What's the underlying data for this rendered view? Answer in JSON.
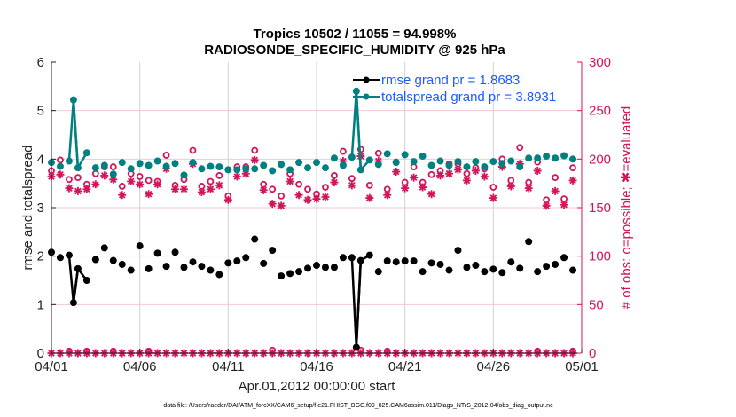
{
  "chart_data": {
    "type": "line",
    "title": "Tropics 10502 / 11055 = 94.998%",
    "subtitle": "RADIOSONDE_SPECIFIC_HUMIDITY @ 925 hPa",
    "xlabel": "Apr.01,2012 00:00:00 start",
    "ylabel": "rmse and totalspread",
    "ylabel_right": "# of obs: o=possible; ✱=evaluated",
    "footer": "data file: /Users/raeder/DAI/ATM_forcXX/CAM6_setup/f.e21.FHIST_BGC.f09_025.CAM6assim.011/Diags_NTrS_2012-04/obs_diag_output.nc",
    "xlim_days": [
      0,
      30
    ],
    "ylim": [
      0,
      6
    ],
    "ylim_right": [
      0,
      300
    ],
    "x_ticks": [
      {
        "day": 0,
        "label": "04/01"
      },
      {
        "day": 5,
        "label": "04/06"
      },
      {
        "day": 10,
        "label": "04/11"
      },
      {
        "day": 15,
        "label": "04/16"
      },
      {
        "day": 20,
        "label": "04/21"
      },
      {
        "day": 25,
        "label": "04/26"
      },
      {
        "day": 30,
        "label": "05/01"
      }
    ],
    "y_ticks": [
      "0",
      "1",
      "2",
      "3",
      "4",
      "5",
      "6"
    ],
    "y_ticks_right": [
      "0",
      "50",
      "100",
      "150",
      "200",
      "250",
      "300"
    ],
    "grid": true,
    "legend_position": "top-right",
    "colors": {
      "rmse": "#000000",
      "totalspread": "#008080",
      "obs": "#d4145a",
      "legend_text": "#1a5cff",
      "vgrid": "#d0d0d0",
      "hgrid": "#f5c6d8"
    },
    "series": [
      {
        "name": "rmse grand pr = 1.8683",
        "axis": "left",
        "connected_spikes": true,
        "x": [
          0,
          0.5,
          1,
          1.25,
          1.5,
          2,
          2.5,
          3,
          3.5,
          4,
          4.5,
          5,
          5.5,
          6,
          6.5,
          7,
          7.5,
          8,
          8.5,
          9,
          9.5,
          10,
          10.5,
          11,
          11.5,
          12,
          12.5,
          13,
          13.5,
          14,
          14.5,
          15,
          15.5,
          16,
          16.5,
          17,
          17.25,
          17.5,
          18,
          18.5,
          19,
          19.5,
          20,
          20.5,
          21,
          21.5,
          22,
          22.5,
          23,
          23.5,
          24,
          24.5,
          25,
          25.5,
          26,
          26.5,
          27,
          27.5,
          28,
          28.5,
          29,
          29.5
        ],
        "y": [
          2.08,
          1.97,
          2.02,
          1.04,
          1.74,
          1.5,
          1.93,
          2.17,
          1.91,
          1.83,
          1.71,
          2.21,
          1.74,
          2.06,
          1.79,
          2.08,
          1.77,
          1.88,
          1.79,
          1.71,
          1.62,
          1.86,
          1.9,
          1.97,
          2.35,
          1.85,
          2.12,
          1.59,
          1.64,
          1.68,
          1.75,
          1.81,
          1.77,
          1.77,
          1.97,
          1.97,
          0.12,
          1.91,
          2.02,
          1.68,
          1.9,
          1.88,
          1.9,
          1.9,
          1.68,
          1.86,
          1.83,
          1.71,
          2.12,
          1.77,
          1.81,
          1.68,
          1.73,
          1.66,
          1.88,
          1.75,
          2.3,
          1.68,
          1.79,
          1.83,
          1.97,
          1.71
        ]
      },
      {
        "name": "totalspread grand pr = 3.8931",
        "axis": "left",
        "x": [
          0,
          0.5,
          1,
          1.25,
          1.5,
          2,
          2.5,
          3,
          3.5,
          4,
          4.5,
          5,
          5.5,
          6,
          6.5,
          7,
          7.5,
          8,
          8.5,
          9,
          9.5,
          10,
          10.5,
          11,
          11.5,
          12,
          12.5,
          13,
          13.5,
          14,
          14.5,
          15,
          15.5,
          16,
          16.5,
          17,
          17.25,
          17.5,
          18,
          18.5,
          19,
          19.5,
          20,
          20.5,
          21,
          21.5,
          22,
          22.5,
          23,
          23.5,
          24,
          24.5,
          25,
          25.5,
          26,
          26.5,
          27,
          27.5,
          28,
          28.5,
          29,
          29.5
        ],
        "y": [
          3.93,
          3.85,
          3.96,
          5.22,
          3.82,
          4.13,
          3.82,
          3.87,
          3.69,
          3.93,
          3.8,
          3.91,
          3.87,
          3.96,
          3.85,
          3.91,
          3.67,
          3.93,
          3.8,
          3.85,
          3.84,
          3.78,
          3.78,
          3.8,
          3.8,
          3.87,
          3.76,
          3.89,
          3.78,
          3.93,
          3.82,
          3.93,
          3.82,
          4.02,
          3.87,
          4.04,
          5.4,
          3.78,
          3.98,
          3.89,
          4.11,
          3.93,
          4.09,
          3.95,
          4.06,
          3.87,
          3.96,
          3.87,
          3.95,
          3.84,
          3.95,
          3.84,
          3.95,
          3.91,
          3.96,
          3.84,
          4.02,
          4.02,
          4.06,
          4.02,
          4.07,
          4.0
        ]
      },
      {
        "name": "obs possible",
        "axis": "right",
        "marker": "circle",
        "x": [
          0,
          0.5,
          1,
          1.5,
          2,
          2.5,
          3,
          3.5,
          4,
          4.5,
          5,
          5.5,
          6,
          6.5,
          7,
          7.5,
          8,
          8.5,
          9,
          9.5,
          10,
          10.5,
          11,
          11.5,
          12,
          12.5,
          13,
          13.5,
          14,
          14.5,
          15,
          15.5,
          16,
          16.5,
          17,
          17.5,
          18,
          18.5,
          19,
          19.5,
          20,
          20.5,
          21,
          21.5,
          22,
          22.5,
          23,
          23.5,
          24,
          24.5,
          25,
          25.5,
          26,
          26.5,
          27,
          27.5,
          28,
          28.5,
          29,
          29.5
        ],
        "y": [
          188,
          199,
          179,
          181,
          174,
          185,
          192,
          192,
          172,
          185,
          182,
          178,
          177,
          204,
          173,
          179,
          209,
          172,
          177,
          183,
          162,
          192,
          192,
          209,
          174,
          169,
          162,
          185,
          174,
          169,
          164,
          171,
          183,
          208,
          180,
          210,
          173,
          206,
          169,
          197,
          176,
          192,
          176,
          184,
          188,
          195,
          195,
          185,
          191,
          190,
          171,
          200,
          178,
          212,
          176,
          197,
          158,
          181,
          159,
          191
        ]
      },
      {
        "name": "obs evaluated",
        "axis": "right",
        "marker": "asterisk",
        "x": [
          0,
          0.5,
          1,
          1.5,
          2,
          2.5,
          3,
          3.5,
          4,
          4.5,
          5,
          5.5,
          6,
          6.5,
          7,
          7.5,
          8,
          8.5,
          9,
          9.5,
          10,
          10.5,
          11,
          11.5,
          12,
          12.5,
          13,
          13.5,
          14,
          14.5,
          15,
          15.5,
          16,
          16.5,
          17,
          17.5,
          18,
          18.5,
          19,
          19.5,
          20,
          20.5,
          21,
          21.5,
          22,
          22.5,
          23,
          23.5,
          24,
          24.5,
          25,
          25.5,
          26,
          26.5,
          27,
          27.5,
          28,
          28.5,
          29,
          29.5
        ],
        "y": [
          182,
          184,
          170,
          167,
          169,
          174,
          183,
          179,
          163,
          177,
          174,
          164,
          174,
          190,
          169,
          169,
          195,
          166,
          169,
          173,
          158,
          182,
          185,
          199,
          168,
          154,
          152,
          177,
          163,
          158,
          159,
          161,
          176,
          198,
          173,
          203,
          160,
          198,
          163,
          187,
          170,
          181,
          171,
          164,
          183,
          185,
          189,
          178,
          188,
          182,
          160,
          192,
          172,
          195,
          170,
          188,
          152,
          167,
          153,
          178
        ]
      },
      {
        "name": "obs possible (rmse/spread)",
        "axis": "right",
        "marker": "circle",
        "x": [
          1,
          2,
          3.5,
          5.5,
          12.5,
          17.5,
          19,
          27.5,
          29.5
        ],
        "y": [
          2,
          2,
          2,
          2,
          3,
          3,
          2,
          2,
          2
        ]
      },
      {
        "name": "obs evaluated (rmse/spread)",
        "axis": "right",
        "marker": "asterisk",
        "x": [
          0,
          0.5,
          1,
          1.5,
          2,
          2.5,
          3,
          3.5,
          4,
          4.5,
          5,
          5.5,
          6,
          6.5,
          7,
          7.5,
          8,
          8.5,
          9,
          9.5,
          10,
          10.5,
          11,
          11.5,
          12,
          12.5,
          13,
          13.5,
          14,
          14.5,
          15,
          15.5,
          16,
          16.5,
          17,
          17.5,
          18,
          18.5,
          19,
          19.5,
          20,
          20.5,
          21,
          21.5,
          22,
          22.5,
          23,
          23.5,
          24,
          24.5,
          25,
          25.5,
          26,
          26.5,
          27,
          27.5,
          28,
          28.5,
          29,
          29.5
        ],
        "y": [
          0,
          0,
          0,
          0,
          0,
          0,
          0,
          0,
          0,
          0,
          0,
          0,
          0,
          0,
          0,
          0,
          0,
          0,
          0,
          0,
          0,
          0,
          0,
          0,
          0,
          0,
          0,
          0,
          0,
          0,
          0,
          0,
          0,
          0,
          0,
          0,
          0,
          0,
          0,
          0,
          0,
          0,
          0,
          0,
          0,
          0,
          0,
          0,
          0,
          0,
          0,
          0,
          0,
          0,
          0,
          0,
          0,
          0,
          0,
          0
        ]
      }
    ]
  }
}
